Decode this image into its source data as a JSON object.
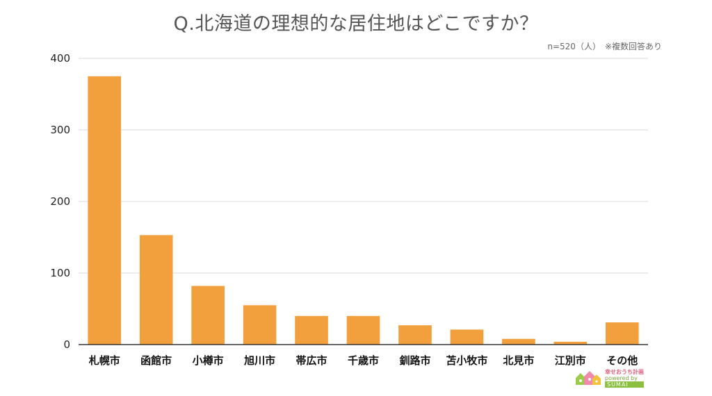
{
  "page": {
    "title": "Q.北海道の理想的な居住地はどこですか？",
    "note": "n=520（人）　※複数回答あり"
  },
  "logo": {
    "name": "幸せおうち計画",
    "sub": "powered by",
    "brand": "SUMAI"
  },
  "colors": {
    "bar": "#F2A03D",
    "grid": "#d9d9d9",
    "axis": "#333333"
  },
  "chart_data": {
    "type": "bar",
    "title": "Q.北海道の理想的な居住地はどこですか？",
    "xlabel": "",
    "ylabel": "",
    "categories": [
      "札幌市",
      "函館市",
      "小樽市",
      "旭川市",
      "帯広市",
      "千歳市",
      "釧路市",
      "苫小牧市",
      "北見市",
      "江別市",
      "その他"
    ],
    "values": [
      375,
      153,
      82,
      55,
      40,
      40,
      27,
      21,
      8,
      4,
      31
    ],
    "ylim": [
      0,
      400
    ],
    "yticks": [
      0,
      100,
      200,
      300,
      400
    ],
    "grid": true,
    "legend": "none"
  }
}
